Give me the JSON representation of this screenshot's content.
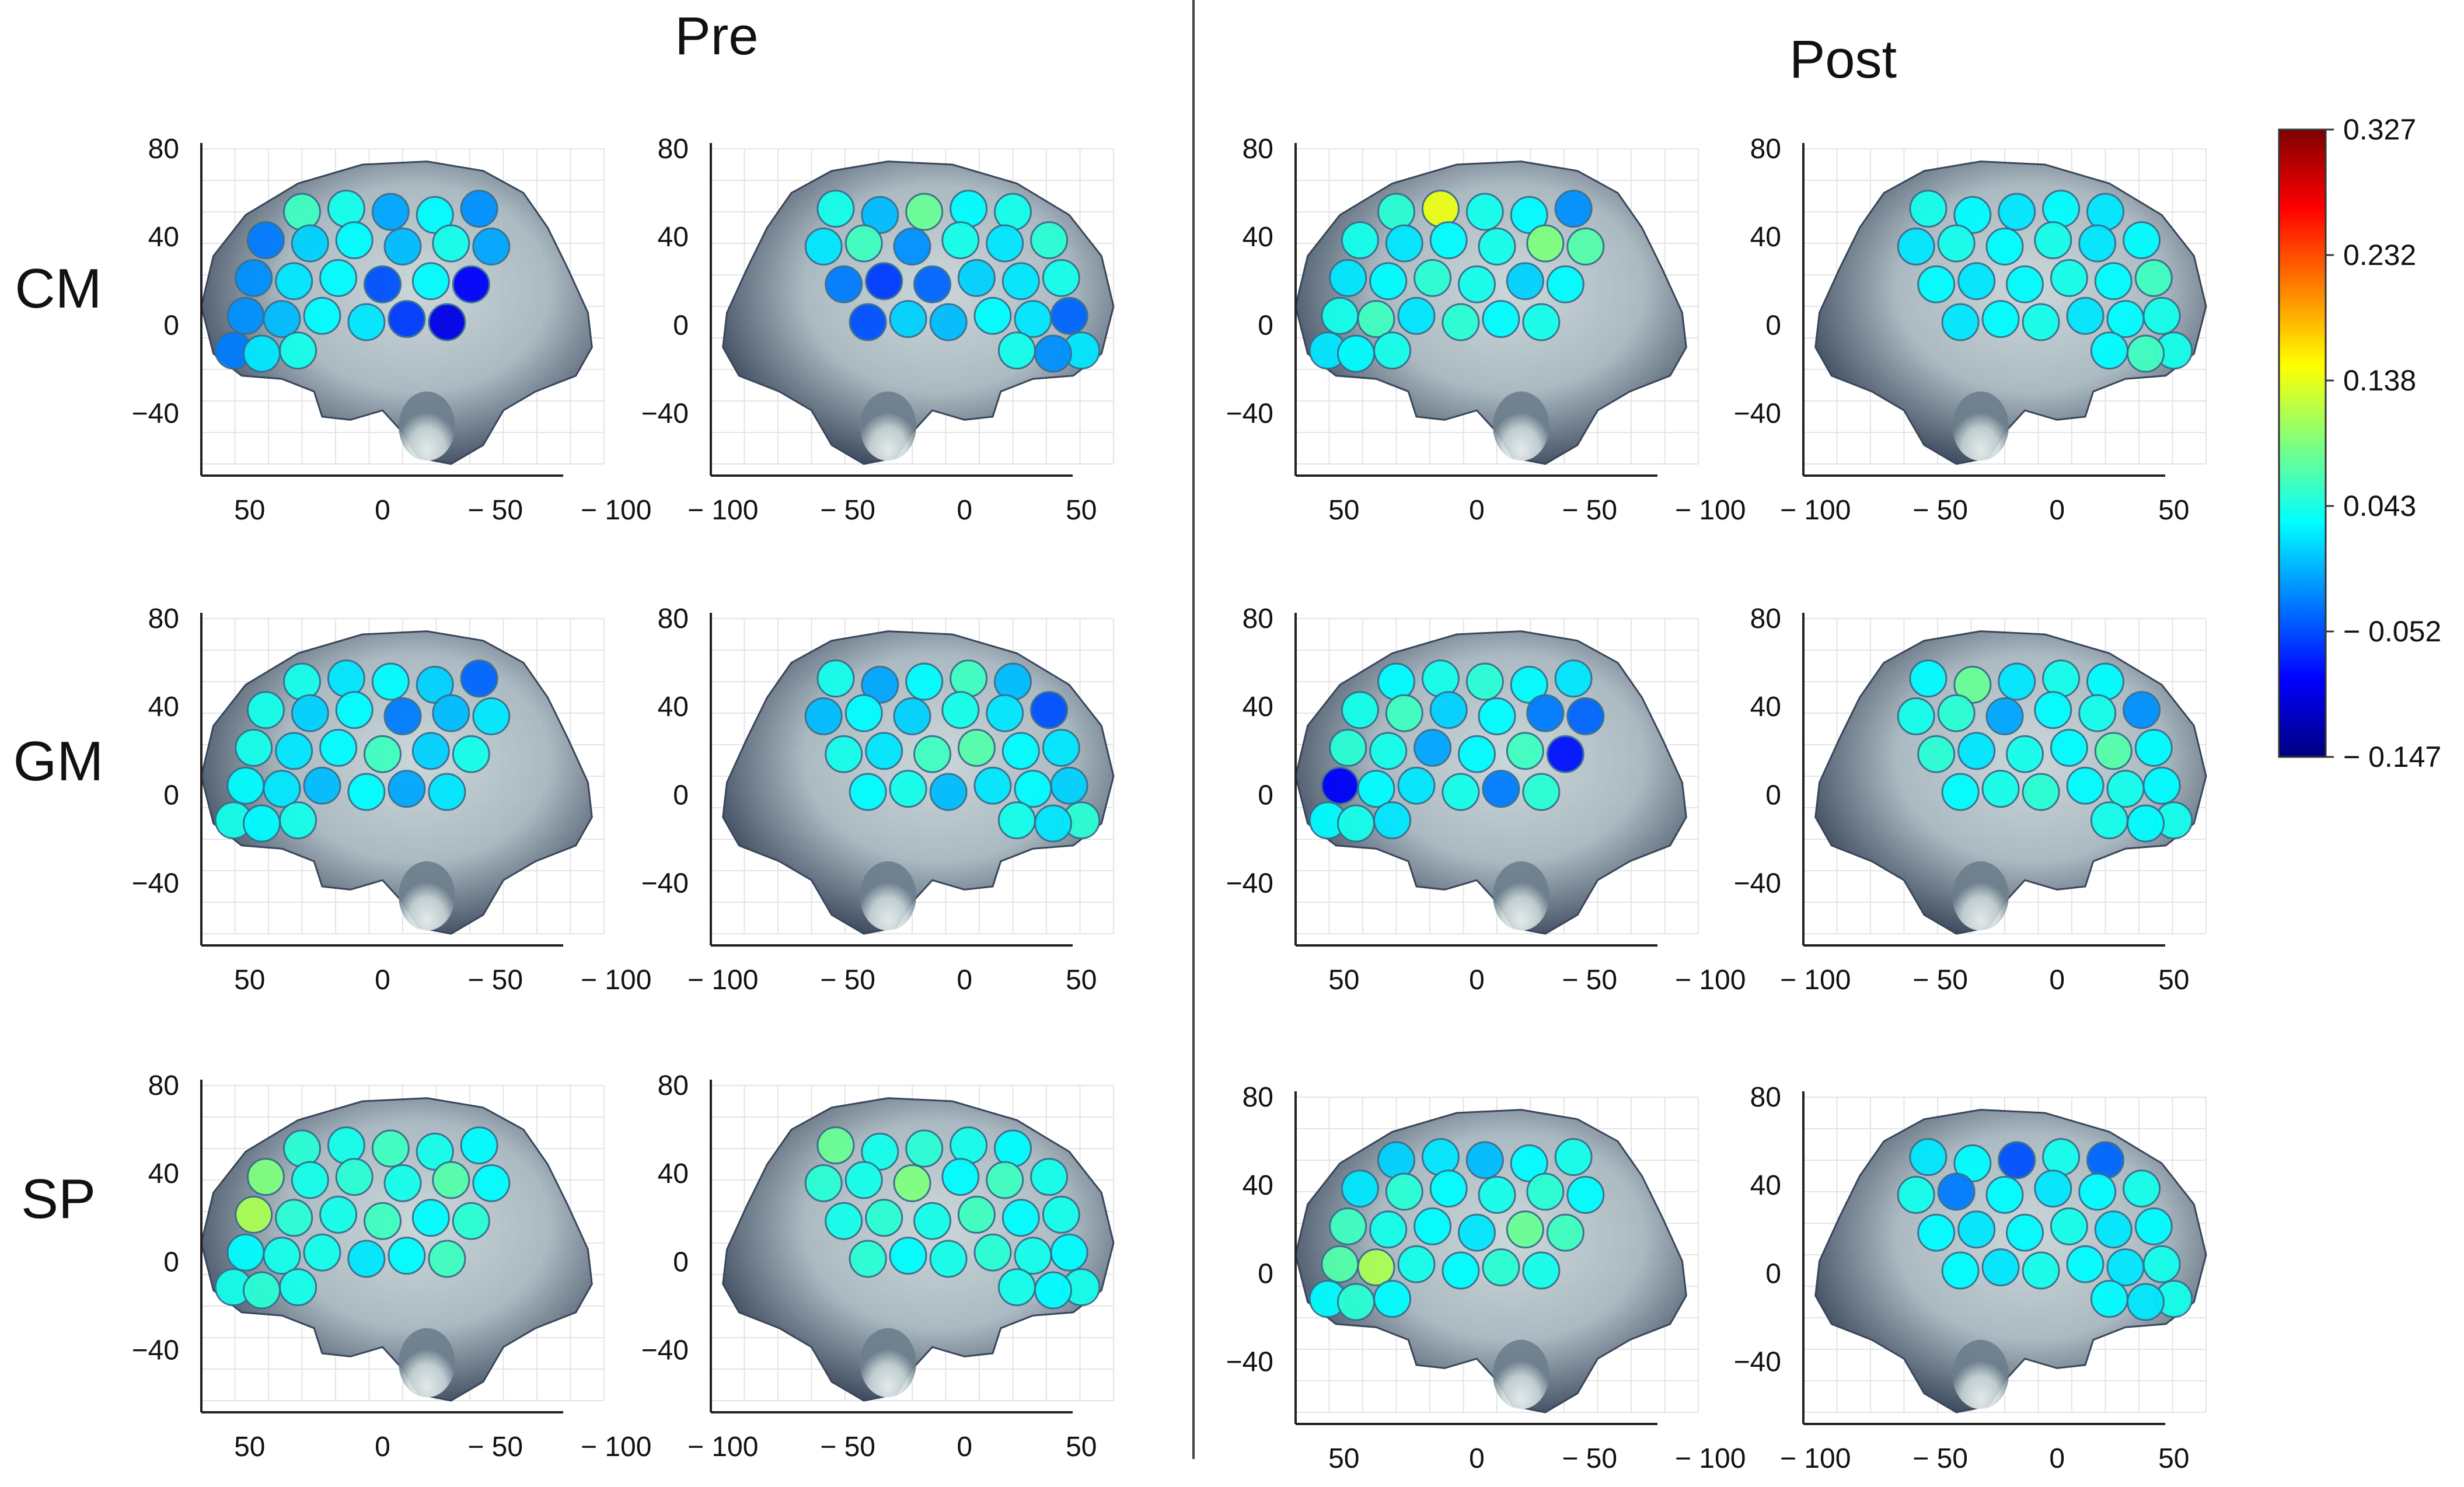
{
  "figure": {
    "column_titles": [
      "Pre",
      "Post"
    ],
    "row_labels": [
      "CM",
      "GM",
      "SP"
    ],
    "colormap": {
      "scheme": "jet",
      "stops": [
        "#00007f",
        "#0000ff",
        "#007fff",
        "#00ffff",
        "#7fff7f",
        "#ffff00",
        "#ff7f00",
        "#ff0000",
        "#7f0000"
      ]
    },
    "colorbar": {
      "min": -0.147,
      "max": 0.327,
      "tick_labels": [
        "0.327",
        "0.232",
        "0.138",
        "0.043",
        "− 0.052",
        "− 0.147"
      ]
    },
    "panels": {
      "left_view": {
        "yticks": [
          "80",
          "40",
          "0",
          "−40"
        ],
        "xticks": [
          "50",
          "0",
          "− 50",
          "− 100"
        ]
      },
      "right_view": {
        "yticks": [
          "80",
          "40",
          "0",
          "−40"
        ],
        "xticks": [
          "− 100",
          "− 50",
          "0",
          "50"
        ]
      }
    },
    "brain_colors": {
      "outline_dark": "#2f3d52",
      "mid": "#8a9aa6",
      "light": "#c9d6d8",
      "highlight": "#eef5f4"
    }
  },
  "chart_data": [
    {
      "type": "heatmap",
      "row": "CM",
      "condition": "Pre",
      "view": "left",
      "values": [
        0.06,
        0.04,
        -0.01,
        0.03,
        -0.02,
        -0.03,
        0.01,
        0.03,
        0.0,
        0.04,
        -0.01,
        -0.02,
        0.02,
        0.03,
        -0.05,
        0.03,
        -0.09,
        -0.02,
        0.0,
        0.03,
        0.02,
        -0.06,
        -0.1,
        -0.03,
        0.02,
        0.04
      ]
    },
    {
      "type": "heatmap",
      "row": "CM",
      "condition": "Pre",
      "view": "right",
      "values": [
        0.04,
        0.03,
        0.08,
        0.0,
        0.04,
        0.05,
        0.02,
        0.04,
        -0.02,
        0.06,
        0.02,
        0.04,
        0.02,
        0.01,
        -0.04,
        -0.06,
        -0.03,
        -0.04,
        0.02,
        0.03,
        0.0,
        0.01,
        -0.05,
        0.02,
        -0.02,
        0.04
      ]
    },
    {
      "type": "heatmap",
      "row": "GM",
      "condition": "Pre",
      "view": "left",
      "values": [
        0.04,
        0.02,
        0.03,
        0.01,
        -0.04,
        0.04,
        0.01,
        0.03,
        -0.03,
        0.0,
        0.02,
        0.04,
        0.02,
        0.03,
        0.06,
        0.01,
        0.04,
        0.03,
        0.02,
        0.0,
        0.03,
        -0.01,
        0.02,
        0.04,
        0.03,
        0.04
      ]
    },
    {
      "type": "heatmap",
      "row": "GM",
      "condition": "Pre",
      "view": "right",
      "values": [
        0.0,
        0.06,
        0.03,
        -0.01,
        0.04,
        -0.05,
        0.02,
        0.04,
        0.01,
        0.03,
        0.0,
        0.02,
        0.03,
        0.07,
        0.06,
        0.02,
        0.04,
        0.01,
        0.03,
        0.02,
        0.0,
        0.04,
        0.03,
        0.05,
        0.02,
        0.04
      ]
    },
    {
      "type": "heatmap",
      "row": "SP",
      "condition": "Pre",
      "view": "left",
      "values": [
        0.05,
        0.04,
        0.06,
        0.04,
        0.03,
        0.09,
        0.04,
        0.05,
        0.04,
        0.07,
        0.03,
        0.11,
        0.05,
        0.04,
        0.06,
        0.03,
        0.05,
        0.03,
        0.04,
        0.04,
        0.02,
        0.03,
        0.06,
        0.04,
        0.05,
        0.04
      ]
    },
    {
      "type": "heatmap",
      "row": "SP",
      "condition": "Pre",
      "view": "right",
      "values": [
        0.03,
        0.04,
        0.05,
        0.04,
        0.08,
        0.04,
        0.06,
        0.03,
        0.09,
        0.04,
        0.05,
        0.04,
        0.03,
        0.06,
        0.04,
        0.05,
        0.04,
        0.03,
        0.04,
        0.05,
        0.04,
        0.03,
        0.05,
        0.04,
        0.03,
        0.04
      ]
    },
    {
      "type": "heatmap",
      "row": "CM",
      "condition": "Post",
      "view": "left",
      "values": [
        0.05,
        0.14,
        0.04,
        0.03,
        -0.02,
        0.04,
        0.02,
        0.03,
        0.04,
        0.09,
        0.07,
        0.02,
        0.03,
        0.05,
        0.04,
        0.01,
        0.03,
        0.04,
        0.06,
        0.02,
        0.05,
        0.03,
        0.04,
        0.02,
        0.03,
        0.04
      ]
    },
    {
      "type": "heatmap",
      "row": "CM",
      "condition": "Post",
      "view": "right",
      "values": [
        0.02,
        0.03,
        0.02,
        0.03,
        0.04,
        0.03,
        0.02,
        0.04,
        0.03,
        0.04,
        0.02,
        0.06,
        0.03,
        0.04,
        0.03,
        0.02,
        0.03,
        0.04,
        0.03,
        0.02,
        0.04,
        0.03,
        0.02,
        0.04,
        0.06,
        0.03
      ]
    },
    {
      "type": "heatmap",
      "row": "GM",
      "condition": "Post",
      "view": "left",
      "values": [
        0.03,
        0.04,
        0.05,
        0.03,
        0.02,
        0.04,
        0.06,
        0.01,
        0.03,
        -0.03,
        -0.04,
        0.05,
        0.04,
        -0.01,
        0.03,
        0.06,
        -0.08,
        -0.09,
        0.03,
        0.02,
        0.04,
        -0.03,
        0.05,
        0.03,
        0.04,
        0.02
      ]
    },
    {
      "type": "heatmap",
      "row": "GM",
      "condition": "Post",
      "view": "right",
      "values": [
        0.03,
        0.04,
        0.02,
        0.08,
        0.03,
        -0.02,
        0.04,
        0.03,
        -0.01,
        0.05,
        0.04,
        0.03,
        0.07,
        0.03,
        0.04,
        0.02,
        0.05,
        0.03,
        0.04,
        0.03,
        0.05,
        0.04,
        0.03,
        0.04,
        0.03,
        0.04
      ]
    },
    {
      "type": "heatmap",
      "row": "SP",
      "condition": "Post",
      "view": "left",
      "values": [
        0.01,
        0.02,
        0.0,
        0.03,
        0.04,
        0.02,
        0.05,
        0.03,
        0.04,
        0.05,
        0.03,
        0.06,
        0.04,
        0.03,
        0.02,
        0.08,
        0.06,
        0.07,
        0.11,
        0.04,
        0.03,
        0.05,
        0.04,
        0.03,
        0.05,
        0.03
      ]
    },
    {
      "type": "heatmap",
      "row": "SP",
      "condition": "Post",
      "view": "right",
      "values": [
        -0.04,
        0.04,
        -0.05,
        0.03,
        0.02,
        0.04,
        0.03,
        0.02,
        0.03,
        -0.03,
        0.04,
        0.03,
        0.02,
        0.04,
        0.03,
        0.02,
        0.03,
        0.04,
        0.02,
        0.03,
        0.04,
        0.02,
        0.03,
        0.04,
        0.02,
        0.03
      ]
    }
  ]
}
